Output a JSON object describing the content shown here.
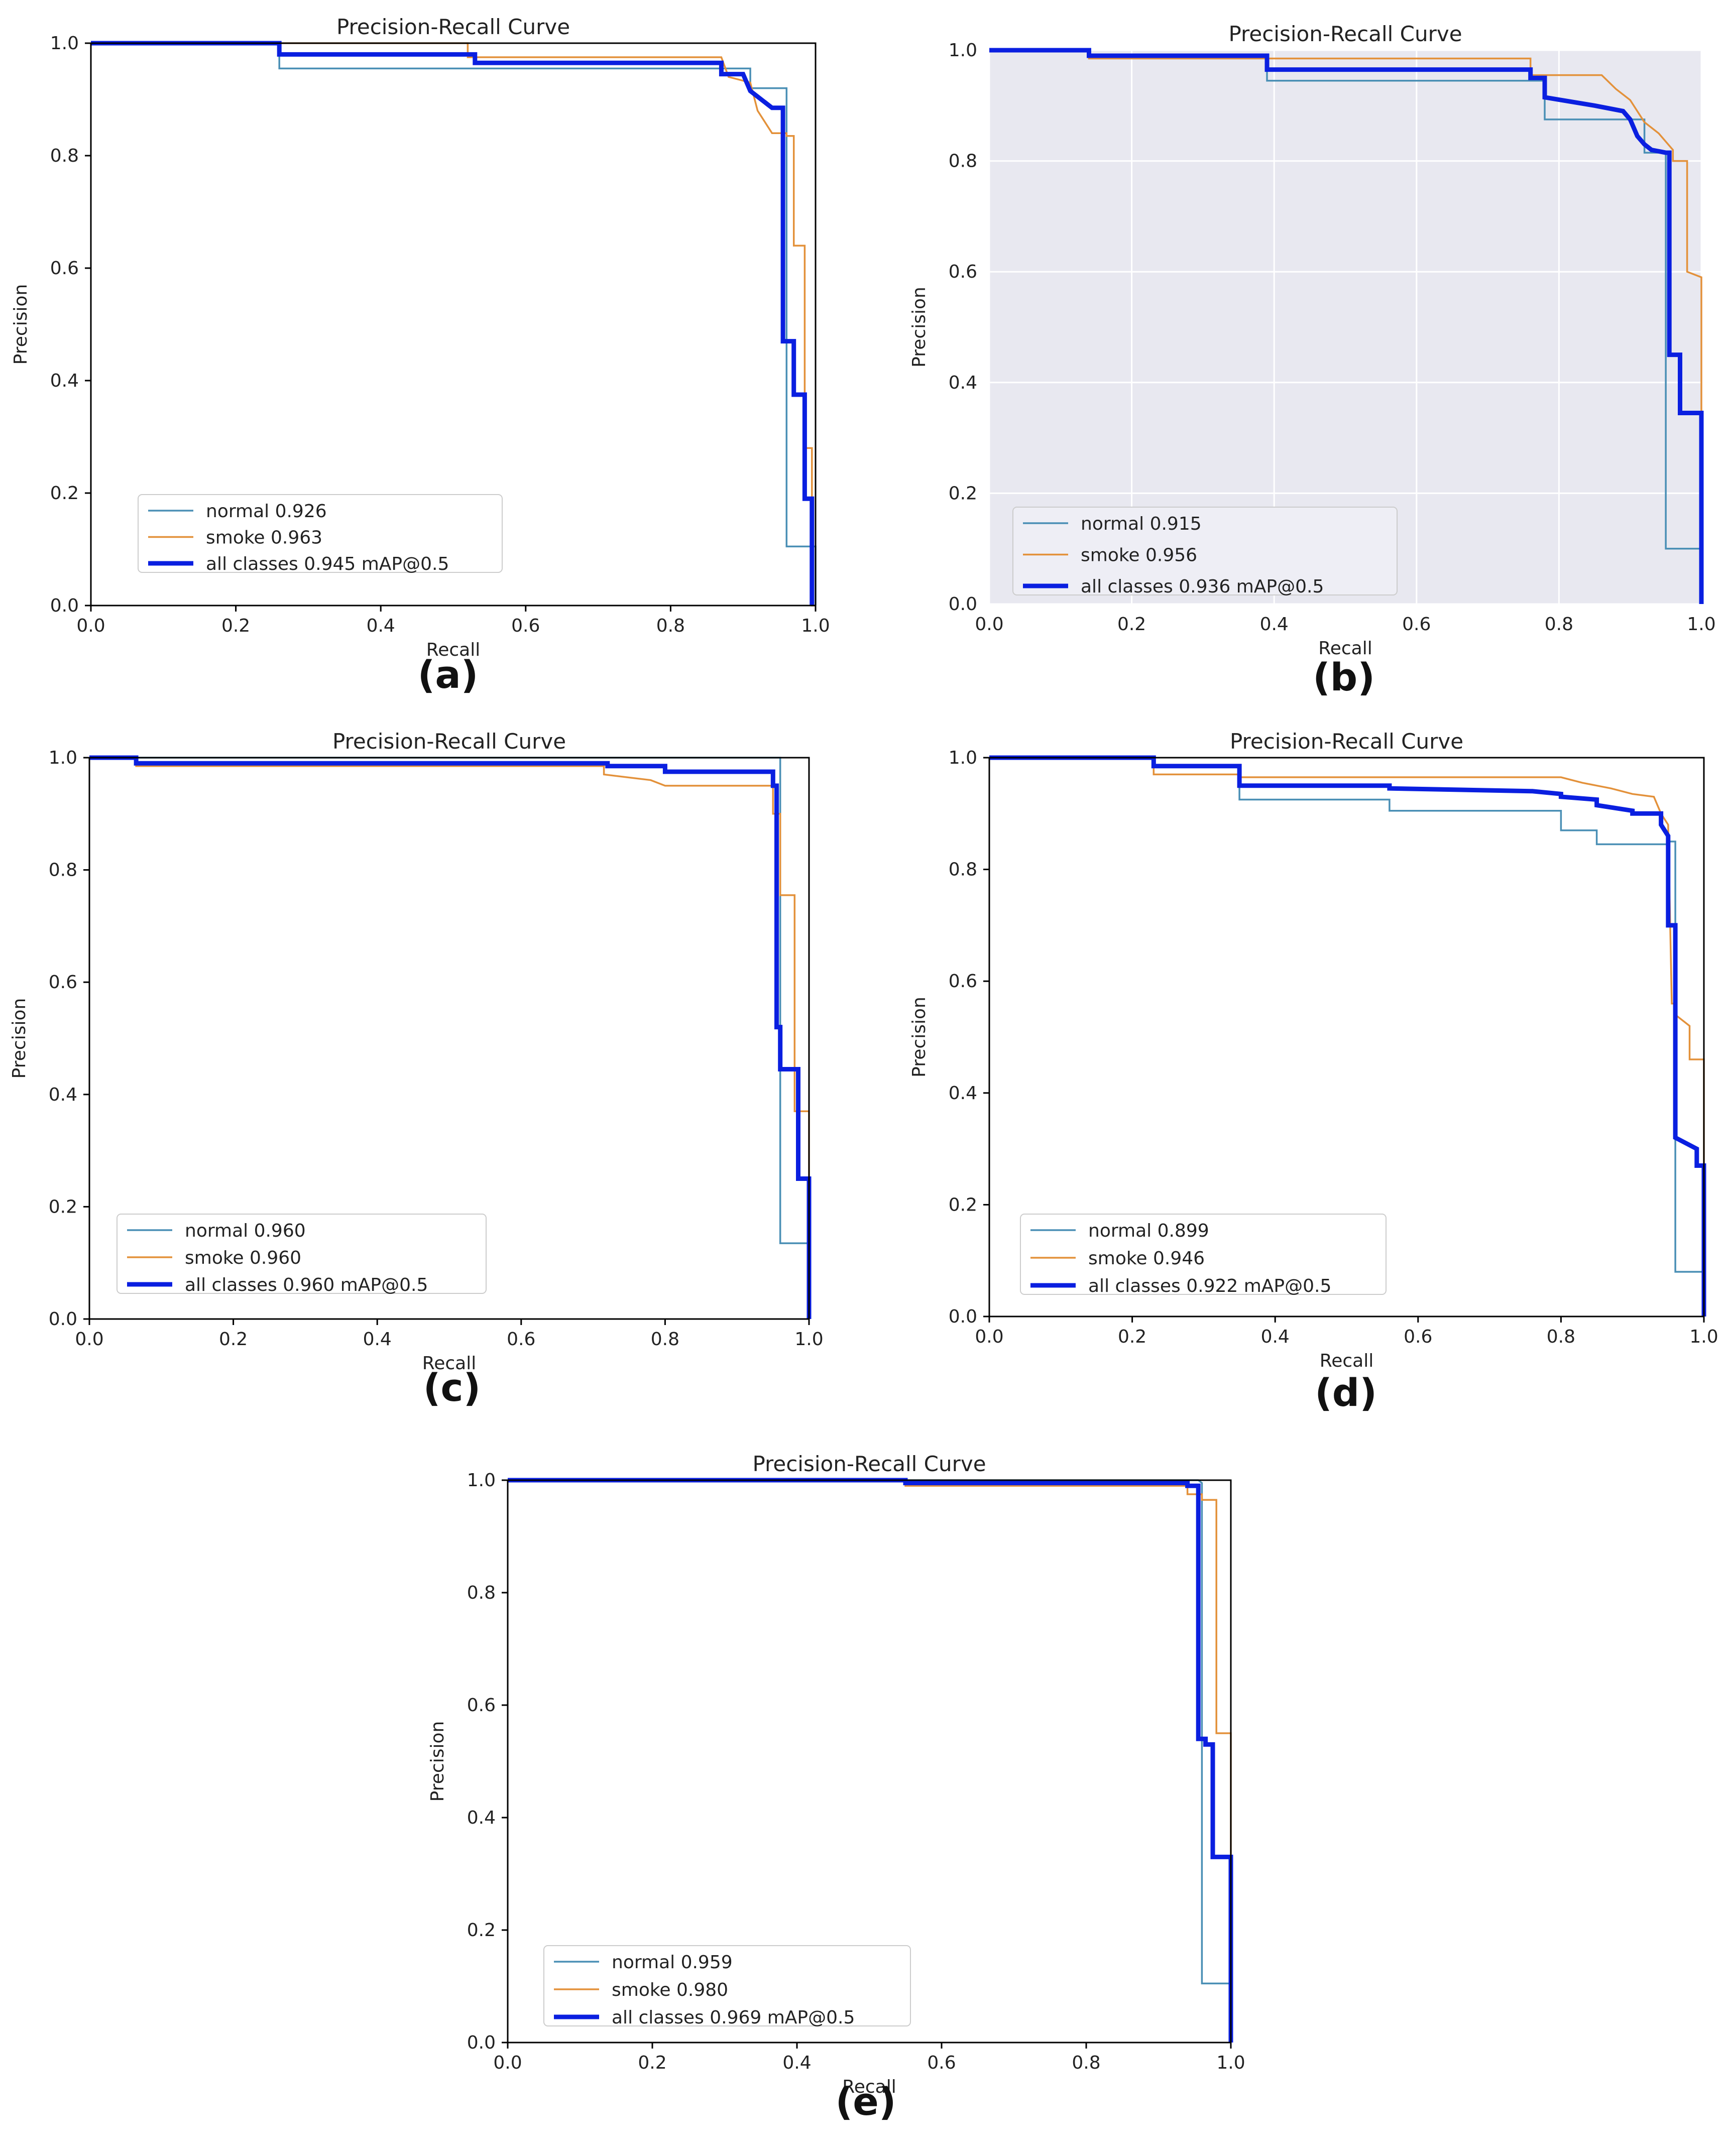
{
  "colors": {
    "normal": "#4a8fb5",
    "smoke": "#e3913a",
    "all": "#0a1fe0",
    "axes_bg_b": "#e8e8f0"
  },
  "chart_data": [
    {
      "panel_label": "(a)",
      "type": "line",
      "title": "Precision-Recall Curve",
      "xlabel": "Recall",
      "ylabel": "Precision",
      "xlim": [
        0,
        1
      ],
      "ylim": [
        0,
        1
      ],
      "xticks": [
        "0.0",
        "0.2",
        "0.4",
        "0.6",
        "0.8",
        "1.0"
      ],
      "yticks": [
        "0.0",
        "0.2",
        "0.4",
        "0.6",
        "0.8",
        "1.0"
      ],
      "grid": false,
      "legend_position": "lower-left",
      "series": [
        {
          "name": "normal 0.926",
          "key": "normal",
          "x": [
            0,
            0.26,
            0.26,
            0.91,
            0.91,
            0.96,
            0.96,
            1.0,
            1.0
          ],
          "y": [
            1.0,
            1.0,
            0.955,
            0.955,
            0.92,
            0.92,
            0.105,
            0.105,
            0.0
          ]
        },
        {
          "name": "smoke 0.963",
          "key": "smoke",
          "x": [
            0,
            0.52,
            0.52,
            0.87,
            0.88,
            0.91,
            0.92,
            0.94,
            0.96,
            0.96,
            0.97,
            0.97,
            0.985,
            0.985,
            0.995,
            0.995,
            1.0
          ],
          "y": [
            1.0,
            1.0,
            0.975,
            0.975,
            0.94,
            0.93,
            0.88,
            0.84,
            0.84,
            0.835,
            0.835,
            0.64,
            0.64,
            0.28,
            0.28,
            0.0,
            0.0
          ]
        },
        {
          "name": "all classes 0.945 mAP@0.5",
          "key": "all",
          "x": [
            0,
            0.26,
            0.26,
            0.53,
            0.53,
            0.87,
            0.87,
            0.9,
            0.91,
            0.92,
            0.93,
            0.94,
            0.955,
            0.955,
            0.97,
            0.97,
            0.985,
            0.985,
            0.995,
            0.995
          ],
          "y": [
            1.0,
            1.0,
            0.98,
            0.98,
            0.965,
            0.965,
            0.945,
            0.945,
            0.915,
            0.905,
            0.895,
            0.885,
            0.885,
            0.47,
            0.47,
            0.375,
            0.375,
            0.19,
            0.19,
            0.0
          ]
        }
      ]
    },
    {
      "panel_label": "(b)",
      "type": "line",
      "title": "Precision-Recall Curve",
      "xlabel": "Recall",
      "ylabel": "Precision",
      "xlim": [
        0,
        1
      ],
      "ylim": [
        0,
        1
      ],
      "xticks": [
        "0.0",
        "0.2",
        "0.4",
        "0.6",
        "0.8",
        "1.0"
      ],
      "yticks": [
        "0.0",
        "0.2",
        "0.4",
        "0.6",
        "0.8",
        "1.0"
      ],
      "grid": true,
      "legend_position": "lower-left",
      "series": [
        {
          "name": "normal 0.915",
          "key": "normal",
          "x": [
            0,
            0.14,
            0.14,
            0.39,
            0.39,
            0.78,
            0.78,
            0.92,
            0.92,
            0.95,
            0.95,
            1.0,
            1.0
          ],
          "y": [
            1.0,
            1.0,
            0.99,
            0.99,
            0.945,
            0.945,
            0.875,
            0.875,
            0.815,
            0.815,
            0.1,
            0.1,
            0.0
          ]
        },
        {
          "name": "smoke 0.956",
          "key": "smoke",
          "x": [
            0,
            0.14,
            0.14,
            0.76,
            0.76,
            0.86,
            0.88,
            0.9,
            0.92,
            0.94,
            0.96,
            0.96,
            0.98,
            0.98,
            1.0,
            1.0
          ],
          "y": [
            1.0,
            1.0,
            0.985,
            0.985,
            0.955,
            0.955,
            0.93,
            0.91,
            0.87,
            0.85,
            0.82,
            0.8,
            0.8,
            0.6,
            0.59,
            0.0
          ]
        },
        {
          "name": "all classes 0.936 mAP@0.5",
          "key": "all",
          "x": [
            0,
            0.14,
            0.14,
            0.39,
            0.39,
            0.76,
            0.76,
            0.78,
            0.78,
            0.85,
            0.89,
            0.9,
            0.91,
            0.92,
            0.93,
            0.95,
            0.955,
            0.955,
            0.97,
            0.97,
            1.0,
            1.0
          ],
          "y": [
            1.0,
            1.0,
            0.99,
            0.99,
            0.965,
            0.965,
            0.95,
            0.95,
            0.915,
            0.9,
            0.89,
            0.875,
            0.845,
            0.83,
            0.82,
            0.815,
            0.815,
            0.45,
            0.45,
            0.345,
            0.345,
            0.0
          ]
        }
      ]
    },
    {
      "panel_label": "(c)",
      "type": "line",
      "title": "Precision-Recall Curve",
      "xlabel": "Recall",
      "ylabel": "Precision",
      "xlim": [
        0,
        1
      ],
      "ylim": [
        0,
        1
      ],
      "xticks": [
        "0.0",
        "0.2",
        "0.4",
        "0.6",
        "0.8",
        "1.0"
      ],
      "yticks": [
        "0.0",
        "0.2",
        "0.4",
        "0.6",
        "0.8",
        "1.0"
      ],
      "grid": false,
      "legend_position": "lower-left",
      "series": [
        {
          "name": "normal 0.960",
          "key": "normal",
          "x": [
            0,
            0.955,
            0.955,
            0.96,
            0.96,
            1.0,
            1.0
          ],
          "y": [
            1.0,
            1.0,
            1.0,
            1.0,
            0.135,
            0.135,
            0.0
          ]
        },
        {
          "name": "smoke 0.960",
          "key": "smoke",
          "x": [
            0,
            0.065,
            0.065,
            0.715,
            0.715,
            0.78,
            0.8,
            0.95,
            0.95,
            0.96,
            0.96,
            0.98,
            0.98,
            1.0,
            1.0
          ],
          "y": [
            1.0,
            1.0,
            0.985,
            0.985,
            0.97,
            0.96,
            0.95,
            0.95,
            0.9,
            0.9,
            0.755,
            0.755,
            0.37,
            0.37,
            0.0
          ]
        },
        {
          "name": "all classes 0.960 mAP@0.5",
          "key": "all",
          "x": [
            0,
            0.065,
            0.065,
            0.72,
            0.72,
            0.8,
            0.8,
            0.95,
            0.95,
            0.955,
            0.955,
            0.96,
            0.96,
            0.985,
            0.985,
            1.0,
            1.0
          ],
          "y": [
            1.0,
            1.0,
            0.99,
            0.99,
            0.985,
            0.985,
            0.975,
            0.975,
            0.95,
            0.95,
            0.52,
            0.52,
            0.445,
            0.445,
            0.25,
            0.25,
            0.0
          ]
        }
      ]
    },
    {
      "panel_label": "(d)",
      "type": "line",
      "title": "Precision-Recall Curve",
      "xlabel": "Recall",
      "ylabel": "Precision",
      "xlim": [
        0,
        1
      ],
      "ylim": [
        0,
        1
      ],
      "xticks": [
        "0.0",
        "0.2",
        "0.4",
        "0.6",
        "0.8",
        "1.0"
      ],
      "yticks": [
        "0.0",
        "0.2",
        "0.4",
        "0.6",
        "0.8",
        "1.0"
      ],
      "grid": false,
      "legend_position": "lower-left",
      "series": [
        {
          "name": "normal 0.899",
          "key": "normal",
          "x": [
            0,
            0.23,
            0.23,
            0.35,
            0.35,
            0.56,
            0.56,
            0.8,
            0.8,
            0.85,
            0.85,
            0.95,
            0.95,
            0.96,
            0.96,
            1.0,
            1.0
          ],
          "y": [
            1.0,
            1.0,
            0.985,
            0.985,
            0.925,
            0.925,
            0.905,
            0.905,
            0.87,
            0.87,
            0.845,
            0.845,
            0.85,
            0.85,
            0.08,
            0.08,
            0.0
          ]
        },
        {
          "name": "smoke 0.946",
          "key": "smoke",
          "x": [
            0,
            0.23,
            0.23,
            0.35,
            0.35,
            0.8,
            0.83,
            0.87,
            0.9,
            0.93,
            0.94,
            0.95,
            0.955,
            0.96,
            0.96,
            0.97,
            0.98,
            0.98,
            1.0,
            1.0
          ],
          "y": [
            1.0,
            1.0,
            0.97,
            0.97,
            0.965,
            0.965,
            0.955,
            0.945,
            0.935,
            0.93,
            0.9,
            0.88,
            0.56,
            0.56,
            0.54,
            0.53,
            0.52,
            0.46,
            0.46,
            0.0
          ]
        },
        {
          "name": "all classes 0.922 mAP@0.5",
          "key": "all",
          "x": [
            0,
            0.23,
            0.23,
            0.35,
            0.35,
            0.56,
            0.56,
            0.76,
            0.8,
            0.8,
            0.85,
            0.85,
            0.9,
            0.9,
            0.94,
            0.94,
            0.95,
            0.95,
            0.96,
            0.96,
            0.99,
            0.99,
            1.0,
            1.0
          ],
          "y": [
            1.0,
            1.0,
            0.985,
            0.985,
            0.95,
            0.95,
            0.945,
            0.94,
            0.935,
            0.93,
            0.925,
            0.915,
            0.905,
            0.9,
            0.9,
            0.88,
            0.86,
            0.7,
            0.7,
            0.32,
            0.3,
            0.27,
            0.27,
            0.0
          ]
        }
      ]
    },
    {
      "panel_label": "(e)",
      "type": "line",
      "title": "Precision-Recall Curve",
      "xlabel": "Recall",
      "ylabel": "Precision",
      "xlim": [
        0,
        1
      ],
      "ylim": [
        0,
        1
      ],
      "xticks": [
        "0.0",
        "0.2",
        "0.4",
        "0.6",
        "0.8",
        "1.0"
      ],
      "yticks": [
        "0.0",
        "0.2",
        "0.4",
        "0.6",
        "0.8",
        "1.0"
      ],
      "grid": false,
      "legend_position": "lower-left",
      "series": [
        {
          "name": "normal 0.959",
          "key": "normal",
          "x": [
            0,
            0.955,
            0.955,
            0.96,
            0.96,
            1.0,
            1.0
          ],
          "y": [
            1.0,
            1.0,
            1.0,
            0.995,
            0.105,
            0.105,
            0.0
          ]
        },
        {
          "name": "smoke 0.980",
          "key": "smoke",
          "x": [
            0,
            0.55,
            0.55,
            0.94,
            0.94,
            0.96,
            0.96,
            0.98,
            0.98,
            1.0,
            1.0
          ],
          "y": [
            1.0,
            1.0,
            0.99,
            0.99,
            0.975,
            0.975,
            0.965,
            0.965,
            0.55,
            0.55,
            0.0
          ]
        },
        {
          "name": "all classes 0.969 mAP@0.5",
          "key": "all",
          "x": [
            0,
            0.55,
            0.55,
            0.94,
            0.94,
            0.955,
            0.955,
            0.965,
            0.965,
            0.975,
            0.975,
            1.0,
            1.0
          ],
          "y": [
            1.0,
            1.0,
            0.995,
            0.995,
            0.99,
            0.99,
            0.54,
            0.54,
            0.53,
            0.53,
            0.33,
            0.33,
            0.0
          ]
        }
      ]
    }
  ]
}
